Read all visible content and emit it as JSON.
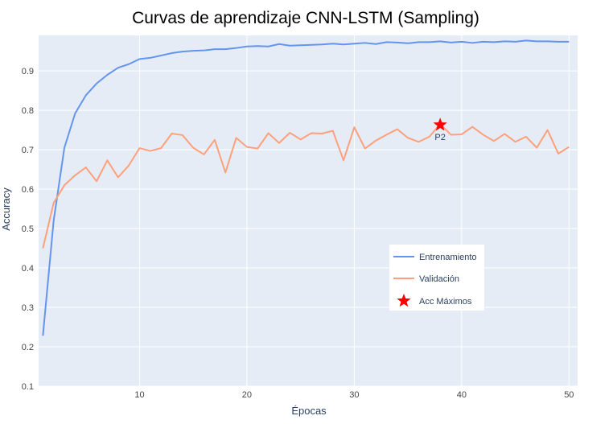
{
  "chart_data": {
    "type": "line",
    "title": "Curvas de aprendizaje CNN-LSTM (Sampling)",
    "xlabel": "Épocas",
    "ylabel": "Accuracy",
    "xlim": [
      0.6,
      50.8
    ],
    "ylim": [
      0.1,
      0.99
    ],
    "x_ticks": [
      10,
      20,
      30,
      40,
      50
    ],
    "y_ticks": [
      0.1,
      0.2,
      0.3,
      0.4,
      0.5,
      0.6,
      0.7,
      0.8,
      0.9
    ],
    "grid": true,
    "background": "#e5ecf6",
    "legend_position": "bottom-right",
    "x": [
      1,
      2,
      3,
      4,
      5,
      6,
      7,
      8,
      9,
      10,
      11,
      12,
      13,
      14,
      15,
      16,
      17,
      18,
      19,
      20,
      21,
      22,
      23,
      24,
      25,
      26,
      27,
      28,
      29,
      30,
      31,
      32,
      33,
      34,
      35,
      36,
      37,
      38,
      39,
      40,
      41,
      42,
      43,
      44,
      45,
      46,
      47,
      48,
      49,
      50
    ],
    "series": [
      {
        "name": "Entrenamiento",
        "color": "#6495ed",
        "values": [
          0.228,
          0.52,
          0.705,
          0.792,
          0.838,
          0.868,
          0.89,
          0.908,
          0.917,
          0.93,
          0.933,
          0.939,
          0.945,
          0.949,
          0.951,
          0.952,
          0.955,
          0.955,
          0.958,
          0.962,
          0.963,
          0.962,
          0.968,
          0.964,
          0.965,
          0.966,
          0.967,
          0.969,
          0.967,
          0.969,
          0.971,
          0.968,
          0.973,
          0.972,
          0.97,
          0.973,
          0.973,
          0.975,
          0.972,
          0.974,
          0.971,
          0.974,
          0.973,
          0.975,
          0.974,
          0.977,
          0.975,
          0.975,
          0.974,
          0.974
        ]
      },
      {
        "name": "Validación",
        "color": "#ffa07a",
        "values": [
          0.45,
          0.565,
          0.61,
          0.635,
          0.655,
          0.62,
          0.673,
          0.63,
          0.66,
          0.704,
          0.697,
          0.704,
          0.741,
          0.737,
          0.705,
          0.688,
          0.725,
          0.642,
          0.73,
          0.707,
          0.703,
          0.742,
          0.717,
          0.743,
          0.726,
          0.742,
          0.741,
          0.748,
          0.673,
          0.757,
          0.703,
          0.723,
          0.738,
          0.752,
          0.73,
          0.72,
          0.733,
          0.765,
          0.738,
          0.739,
          0.758,
          0.738,
          0.722,
          0.74,
          0.72,
          0.733,
          0.705,
          0.75,
          0.69,
          0.707
        ]
      }
    ],
    "markers": {
      "name": "Acc Máximos",
      "color": "#ff0000",
      "symbol": "star",
      "points": [
        {
          "x": 38,
          "y": 0.763,
          "label": "P2"
        }
      ]
    }
  }
}
